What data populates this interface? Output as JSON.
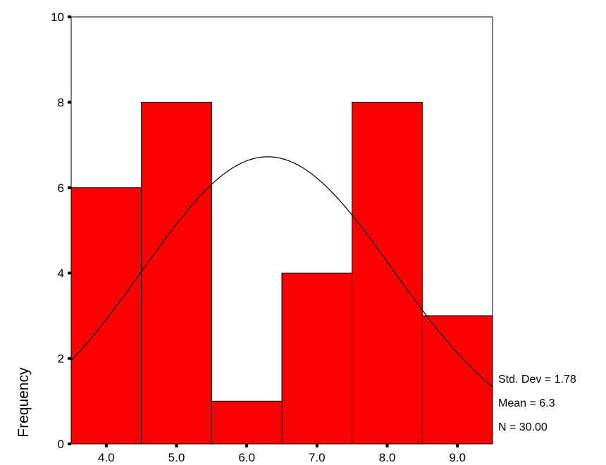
{
  "chart_data": {
    "type": "bar",
    "subtype": "histogram",
    "title": "",
    "xlabel": "",
    "ylabel": "Frequency",
    "categories": [
      "4.0",
      "5.0",
      "6.0",
      "7.0",
      "8.0",
      "9.0"
    ],
    "bin_centers": [
      4.0,
      5.0,
      6.0,
      7.0,
      8.0,
      9.0
    ],
    "bin_width": 1.0,
    "values": [
      6,
      8,
      1,
      4,
      8,
      3
    ],
    "xlim": [
      3.5,
      9.5
    ],
    "ylim": [
      0,
      10
    ],
    "yticks": [
      "0",
      "2",
      "4",
      "6",
      "8",
      "10"
    ],
    "grid": false,
    "bar_color": "#ff0000",
    "bar_edge_color": "#000000",
    "normal_curve": {
      "mean": 6.3,
      "std_dev": 1.78,
      "n": 30
    },
    "stats": [
      "Std. Dev = 1.78",
      "Mean = 6.3",
      "N = 30.00"
    ]
  }
}
